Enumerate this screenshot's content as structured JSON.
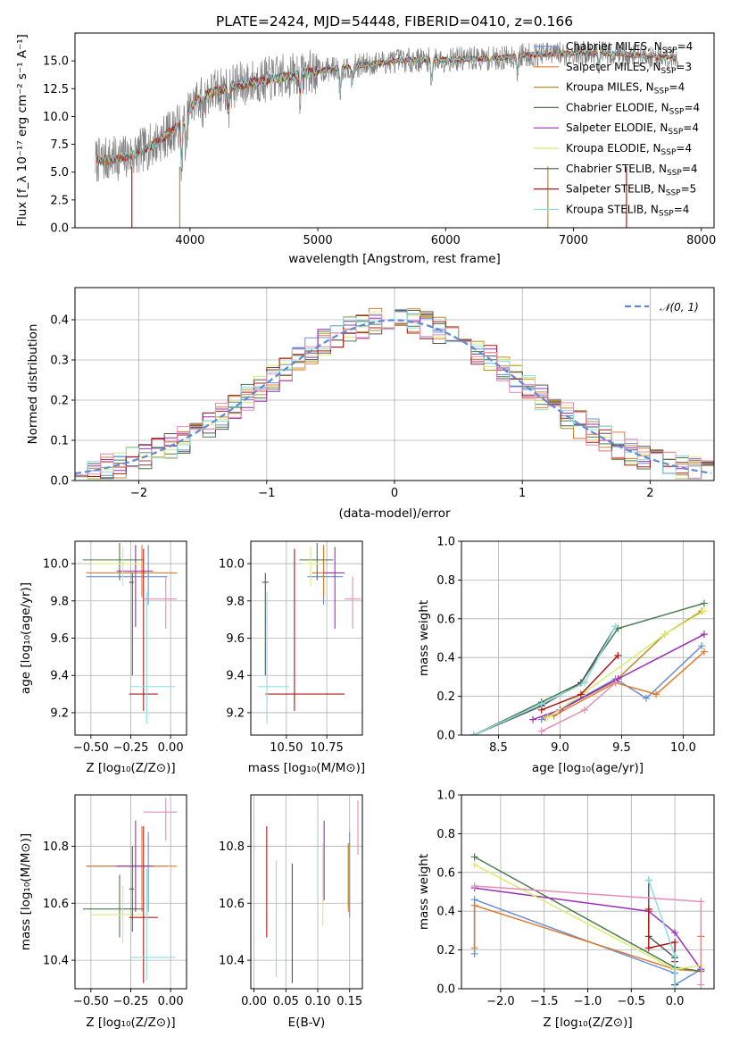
{
  "colors": {
    "chabrier_miles": "#6a8fd8",
    "salpeter_miles": "#e07b2b",
    "kroupa_miles": "#b8902a",
    "chabrier_elodie": "#4c7a4c",
    "salpeter_elodie": "#9a2fb8",
    "kroupa_elodie": "#d8ee70",
    "chabrier_stelib": "#555555",
    "salpeter_stelib": "#b01818",
    "kroupa_stelib": "#8adfe0",
    "pink": "#e58cb6",
    "spectrum": "#808080",
    "gaussian": "#5b8ad8",
    "grid": "#b0b0b0"
  },
  "chart_data": [
    {
      "type": "line",
      "title": "PLATE=2424, MJD=54448, FIBERID=0410, z=0.166",
      "xlabel": "wavelength [Angstrom, rest frame]",
      "ylabel": "Flux [f_λ 10⁻¹⁷ erg cm⁻² s⁻¹ A⁻¹]",
      "xlim": [
        3100,
        8100
      ],
      "ylim": [
        0,
        17.5
      ],
      "xticks": [
        "4000",
        "5000",
        "6000",
        "7000",
        "8000"
      ],
      "yticks": [
        "0.0",
        "2.5",
        "5.0",
        "7.5",
        "10.0",
        "12.5",
        "15.0"
      ],
      "grid": false,
      "legend_placement": "top-right",
      "legend": [
        {
          "label": "Chabrier MILES, N",
          "sub": "SSP",
          "tail": "=4",
          "color_key": "chabrier_miles"
        },
        {
          "label": "Salpeter MILES, N",
          "sub": "SSP",
          "tail": "=3",
          "color_key": "salpeter_miles"
        },
        {
          "label": "Kroupa MILES, N",
          "sub": "SSP",
          "tail": "=4",
          "color_key": "kroupa_miles"
        },
        {
          "label": "Chabrier ELODIE, N",
          "sub": "SSP",
          "tail": "=4",
          "color_key": "chabrier_elodie"
        },
        {
          "label": "Salpeter ELODIE, N",
          "sub": "SSP",
          "tail": "=4",
          "color_key": "salpeter_elodie"
        },
        {
          "label": "Kroupa ELODIE, N",
          "sub": "SSP",
          "tail": "=4",
          "color_key": "kroupa_elodie"
        },
        {
          "label": "Chabrier STELIB, N",
          "sub": "SSP",
          "tail": "=4",
          "color_key": "chabrier_stelib"
        },
        {
          "label": "Salpeter STELIB, N",
          "sub": "SSP",
          "tail": "=5",
          "color_key": "salpeter_stelib"
        },
        {
          "label": "Kroupa STELIB, N",
          "sub": "SSP",
          "tail": "=4",
          "color_key": "kroupa_stelib"
        }
      ],
      "continuum": {
        "wavelength": [
          3260,
          3400,
          3550,
          3700,
          3850,
          3950,
          4050,
          4200,
          4400,
          4600,
          4800,
          5000,
          5200,
          5400,
          5600,
          5800,
          6000,
          6200,
          6400,
          6600,
          6800,
          7000,
          7200,
          7400,
          7600,
          7800
        ],
        "flux": [
          6.0,
          6.2,
          6.5,
          7.4,
          8.6,
          9.6,
          11.5,
          12.3,
          12.9,
          13.3,
          13.7,
          14.1,
          14.4,
          14.7,
          15.0,
          15.1,
          15.1,
          15.2,
          15.2,
          15.5,
          15.6,
          15.7,
          15.7,
          15.6,
          15.4,
          15.2
        ]
      }
    },
    {
      "type": "line",
      "xlabel": "(data-model)/error",
      "ylabel": "Normed distribution",
      "xlim": [
        -2.5,
        2.5
      ],
      "ylim": [
        0,
        0.48
      ],
      "xticks": [
        "−2",
        "−1",
        "0",
        "1",
        "2"
      ],
      "yticks": [
        "0.0",
        "0.1",
        "0.2",
        "0.3",
        "0.4"
      ],
      "grid": true,
      "legend_placement": "top-right",
      "legend": [
        {
          "label": "𝒩(0, 1)",
          "color_key": "gaussian"
        }
      ],
      "histogram_bin_width": 0.1
    },
    {
      "type": "scatter",
      "xlabel": "Z [log₁₀(Z/Z⊙)]",
      "ylabel": "age  [log₁₀(age/yr)]",
      "xlim": [
        -0.6,
        0.1
      ],
      "ylim": [
        9.08,
        10.12
      ],
      "xticks": [
        "−0.50",
        "−0.25",
        "0.00"
      ],
      "yticks": [
        "9.2",
        "9.4",
        "9.6",
        "9.8",
        "10.0"
      ],
      "grid": true,
      "series": [
        {
          "color_key": "chabrier_miles",
          "x": -0.14,
          "xerr": [
            0.39,
            0.12
          ],
          "y": 9.93,
          "yerr": [
            0.15,
            0.17
          ]
        },
        {
          "color_key": "salpeter_miles",
          "x": -0.18,
          "xerr": [
            0.35,
            0.22
          ],
          "y": 9.95,
          "yerr": [
            0.13,
            0.15
          ]
        },
        {
          "color_key": "chabrier_elodie",
          "x": -0.32,
          "xerr": [
            0.23,
            0.15
          ],
          "y": 10.02,
          "yerr": [
            0.11,
            0.09
          ]
        },
        {
          "color_key": "salpeter_elodie",
          "x": -0.22,
          "xerr": [
            0.12,
            0.11
          ],
          "y": 9.96,
          "yerr": [
            0.3,
            0.14
          ]
        },
        {
          "color_key": "kroupa_elodie",
          "x": -0.3,
          "xerr": [
            0.2,
            0.14
          ],
          "y": 10.0,
          "yerr": [
            0.12,
            0.09
          ]
        },
        {
          "color_key": "chabrier_stelib",
          "x": -0.24,
          "xerr": [
            0.02,
            0.01
          ],
          "y": 9.9,
          "yerr": [
            0.5,
            0.05
          ]
        },
        {
          "color_key": "salpeter_stelib",
          "x": -0.17,
          "xerr": [
            0.09,
            0.09
          ],
          "y": 9.3,
          "yerr": [
            0.09,
            0.78
          ]
        },
        {
          "color_key": "kroupa_stelib",
          "x": -0.15,
          "xerr": [
            0.1,
            0.18
          ],
          "y": 9.34,
          "yerr": [
            0.2,
            0.51
          ]
        },
        {
          "color_key": "pink",
          "x": -0.03,
          "xerr": [
            0.14,
            0.07
          ],
          "y": 9.81,
          "yerr": [
            0.16,
            0.12
          ]
        }
      ]
    },
    {
      "type": "scatter",
      "xlabel": "mass [log₁₀(M/M⊙)]",
      "xlim": [
        10.28,
        10.97
      ],
      "ylim": [
        9.08,
        10.12
      ],
      "xticks": [
        "10.50",
        "10.75"
      ],
      "yticks": [
        "9.2",
        "9.4",
        "9.6",
        "9.8",
        "10.0"
      ],
      "grid": true,
      "series": [
        {
          "color_key": "chabrier_miles",
          "x": 10.73,
          "xerr": [
            0.1,
            0.12
          ],
          "y": 9.93,
          "yerr": [
            0.15,
            0.17
          ]
        },
        {
          "color_key": "salpeter_miles",
          "x": 10.73,
          "xerr": [
            0.07,
            0.05
          ],
          "y": 9.95,
          "yerr": [
            0.13,
            0.15
          ]
        },
        {
          "color_key": "chabrier_elodie",
          "x": 10.69,
          "xerr": [
            0.11,
            0.1
          ],
          "y": 10.02,
          "yerr": [
            0.11,
            0.09
          ]
        },
        {
          "color_key": "salpeter_elodie",
          "x": 10.8,
          "xerr": [
            0.07,
            0.06
          ],
          "y": 9.95,
          "yerr": [
            0.3,
            0.14
          ]
        },
        {
          "color_key": "kroupa_elodie",
          "x": 10.65,
          "xerr": [
            0.05,
            0.06
          ],
          "y": 10.0,
          "yerr": [
            0.12,
            0.09
          ]
        },
        {
          "color_key": "chabrier_stelib",
          "x": 10.37,
          "xerr": [
            0.02,
            0.02
          ],
          "y": 9.9,
          "yerr": [
            0.5,
            0.05
          ]
        },
        {
          "color_key": "salpeter_stelib",
          "x": 10.55,
          "xerr": [
            0.18,
            0.31
          ],
          "y": 9.3,
          "yerr": [
            0.09,
            0.78
          ]
        },
        {
          "color_key": "kroupa_stelib",
          "x": 10.38,
          "xerr": [
            0.06,
            0.14
          ],
          "y": 9.34,
          "yerr": [
            0.2,
            0.51
          ]
        },
        {
          "color_key": "pink",
          "x": 10.91,
          "xerr": [
            0.05,
            0.05
          ],
          "y": 9.81,
          "yerr": [
            0.16,
            0.12
          ]
        }
      ]
    },
    {
      "type": "line",
      "xlabel": "age  [log₁₀(age/yr)]",
      "ylabel": "mass weight",
      "xlim": [
        8.2,
        10.25
      ],
      "ylim": [
        0,
        1
      ],
      "xticks": [
        "8.5",
        "9.0",
        "9.5",
        "10.0"
      ],
      "yticks": [
        "0.0",
        "0.2",
        "0.4",
        "0.6",
        "0.8",
        "1.0"
      ],
      "grid": true,
      "series": [
        {
          "color_key": "chabrier_miles",
          "x": [
            8.85,
            9.45,
            9.7,
            10.15
          ],
          "y": [
            0.08,
            0.29,
            0.19,
            0.46
          ]
        },
        {
          "color_key": "salpeter_miles",
          "x": [
            8.95,
            9.45,
            9.78,
            10.17
          ],
          "y": [
            0.1,
            0.27,
            0.21,
            0.43
          ]
        },
        {
          "color_key": "kroupa_miles",
          "x": [
            8.88,
            9.45,
            9.85,
            10.15
          ],
          "y": [
            0.09,
            0.28,
            0.52,
            0.64
          ]
        },
        {
          "color_key": "chabrier_elodie",
          "x": [
            8.3,
            8.85,
            9.17,
            9.47,
            10.17
          ],
          "y": [
            0.0,
            0.17,
            0.27,
            0.55,
            0.68
          ]
        },
        {
          "color_key": "salpeter_elodie",
          "x": [
            8.78,
            9.0,
            9.47,
            10.17
          ],
          "y": [
            0.08,
            0.13,
            0.29,
            0.52
          ]
        },
        {
          "color_key": "kroupa_elodie",
          "x": [
            8.9,
            9.2,
            9.85,
            10.17
          ],
          "y": [
            0.09,
            0.22,
            0.52,
            0.64
          ]
        },
        {
          "color_key": "chabrier_stelib",
          "x": [
            8.3,
            8.85,
            9.17,
            9.45
          ],
          "y": [
            0.0,
            0.15,
            0.27,
            0.56
          ]
        },
        {
          "color_key": "salpeter_stelib",
          "x": [
            8.85,
            9.17,
            9.47
          ],
          "y": [
            0.13,
            0.21,
            0.41
          ]
        },
        {
          "color_key": "kroupa_stelib",
          "x": [
            8.3,
            8.85,
            9.2,
            9.45
          ],
          "y": [
            0.0,
            0.16,
            0.27,
            0.56
          ]
        },
        {
          "color_key": "pink",
          "x": [
            8.85,
            9.2,
            9.45
          ],
          "y": [
            0.02,
            0.13,
            0.27
          ]
        }
      ]
    },
    {
      "type": "scatter",
      "xlabel": "Z [log₁₀(Z/Z⊙)]",
      "ylabel": "mass [log₁₀(M/M⊙)]",
      "xlim": [
        -0.6,
        0.1
      ],
      "ylim": [
        10.3,
        10.98
      ],
      "xticks": [
        "−0.50",
        "−0.25",
        "0.00"
      ],
      "yticks": [
        "10.4",
        "10.6",
        "10.8"
      ],
      "grid": true,
      "series": [
        {
          "color_key": "chabrier_miles",
          "x": -0.14,
          "xerr": [
            0.39,
            0.12
          ],
          "y": 10.73,
          "yerr": [
            0.16,
            0.12
          ]
        },
        {
          "color_key": "salpeter_miles",
          "x": -0.18,
          "xerr": [
            0.35,
            0.22
          ],
          "y": 10.73,
          "yerr": [
            0.16,
            0.14
          ]
        },
        {
          "color_key": "chabrier_elodie",
          "x": -0.32,
          "xerr": [
            0.23,
            0.15
          ],
          "y": 10.58,
          "yerr": [
            0.1,
            0.12
          ]
        },
        {
          "color_key": "salpeter_elodie",
          "x": -0.22,
          "xerr": [
            0.12,
            0.11
          ],
          "y": 10.73,
          "yerr": [
            0.16,
            0.16
          ]
        },
        {
          "color_key": "kroupa_elodie",
          "x": -0.3,
          "xerr": [
            0.2,
            0.14
          ],
          "y": 10.56,
          "yerr": [
            0.1,
            0.1
          ]
        },
        {
          "color_key": "chabrier_stelib",
          "x": -0.24,
          "xerr": [
            0.02,
            0.01
          ],
          "y": 10.65,
          "yerr": [
            0.15,
            0.15
          ]
        },
        {
          "color_key": "salpeter_stelib",
          "x": -0.17,
          "xerr": [
            0.09,
            0.09
          ],
          "y": 10.55,
          "yerr": [
            0.23,
            0.32
          ]
        },
        {
          "color_key": "kroupa_stelib",
          "x": -0.15,
          "xerr": [
            0.1,
            0.18
          ],
          "y": 10.41,
          "yerr": [
            0.08,
            0.31
          ]
        },
        {
          "color_key": "pink",
          "x": -0.03,
          "xerr": [
            0.14,
            0.07
          ],
          "y": 10.92,
          "yerr": [
            0.1,
            0.05
          ]
        }
      ]
    },
    {
      "type": "scatter",
      "xlabel": "E(B-V)",
      "xlim": [
        -0.005,
        0.17
      ],
      "ylim": [
        10.3,
        10.98
      ],
      "xticks": [
        "0.00",
        "0.05",
        "0.10",
        "0.15"
      ],
      "yticks": [
        "10.4",
        "10.6",
        "10.8"
      ],
      "grid": true,
      "series": [
        {
          "color_key": "chabrier_miles",
          "x": 0.15,
          "y": 10.73,
          "yerr": [
            0.18,
            0.12
          ]
        },
        {
          "color_key": "salpeter_miles",
          "x": 0.148,
          "y": 10.73,
          "yerr": [
            0.16,
            0.08
          ]
        },
        {
          "color_key": "kroupa_miles",
          "x": 0.148,
          "y": 10.73,
          "yerr": [
            0.14,
            0.08
          ]
        },
        {
          "color_key": "salpeter_elodie",
          "x": 0.11,
          "y": 10.73,
          "yerr": [
            0.12,
            0.16
          ]
        },
        {
          "color_key": "kroupa_elodie",
          "x": 0.108,
          "y": 10.73,
          "yerr": [
            0.21,
            0.08
          ]
        },
        {
          "color_key": "chabrier_stelib",
          "x": 0.06,
          "y": 10.65,
          "yerr": [
            0.33,
            0.09
          ]
        },
        {
          "color_key": "salpeter_stelib",
          "x": 0.02,
          "y": 10.73,
          "yerr": [
            0.25,
            0.14
          ]
        },
        {
          "color_key": "kroupa_stelib",
          "x": 0.035,
          "y": 10.65,
          "yerr": [
            0.31,
            0.1
          ]
        },
        {
          "color_key": "pink",
          "x": 0.163,
          "y": 10.92,
          "yerr": [
            0.15,
            0.04
          ]
        }
      ]
    },
    {
      "type": "line",
      "xlabel": "Z [log₁₀(Z/Z⊙)]",
      "ylabel": "mass weight",
      "xlim": [
        -2.45,
        0.45
      ],
      "ylim": [
        0,
        1
      ],
      "xticks": [
        "−2.0",
        "−1.5",
        "−1.0",
        "−0.5",
        "0.0"
      ],
      "yticks": [
        "0.0",
        "0.2",
        "0.4",
        "0.6",
        "0.8",
        "1.0"
      ],
      "grid": true,
      "series": [
        {
          "color_key": "chabrier_miles",
          "x": [
            -2.3,
            -2.3,
            0.0,
            0.0,
            0.3
          ],
          "y": [
            0.18,
            0.46,
            0.08,
            0.02,
            0.1
          ]
        },
        {
          "color_key": "salpeter_miles",
          "x": [
            -2.3,
            -2.3,
            0.0,
            0.3,
            0.3
          ],
          "y": [
            0.21,
            0.43,
            0.1,
            0.09,
            0.27
          ]
        },
        {
          "color_key": "chabrier_elodie",
          "x": [
            -2.3,
            0.0,
            0.3
          ],
          "y": [
            0.68,
            0.11,
            0.09
          ]
        },
        {
          "color_key": "salpeter_elodie",
          "x": [
            -2.3,
            -0.3,
            0.0,
            0.3
          ],
          "y": [
            0.52,
            0.4,
            0.29,
            0.1
          ]
        },
        {
          "color_key": "kroupa_elodie",
          "x": [
            -2.3,
            0.0,
            0.3
          ],
          "y": [
            0.64,
            0.1,
            0.12
          ]
        },
        {
          "color_key": "chabrier_stelib",
          "x": [
            -0.3,
            -0.3,
            0.0,
            0.0
          ],
          "y": [
            0.56,
            0.27,
            0.16,
            0.02
          ]
        },
        {
          "color_key": "salpeter_stelib",
          "x": [
            -0.3,
            -0.3,
            0.0,
            0.0
          ],
          "y": [
            0.41,
            0.21,
            0.24,
            0.14
          ]
        },
        {
          "color_key": "kroupa_stelib",
          "x": [
            -0.3,
            0.0,
            0.0
          ],
          "y": [
            0.56,
            0.17,
            0.0
          ]
        },
        {
          "color_key": "pink",
          "x": [
            -2.3,
            0.3,
            0.3
          ],
          "y": [
            0.53,
            0.45,
            0.02
          ]
        }
      ]
    }
  ]
}
